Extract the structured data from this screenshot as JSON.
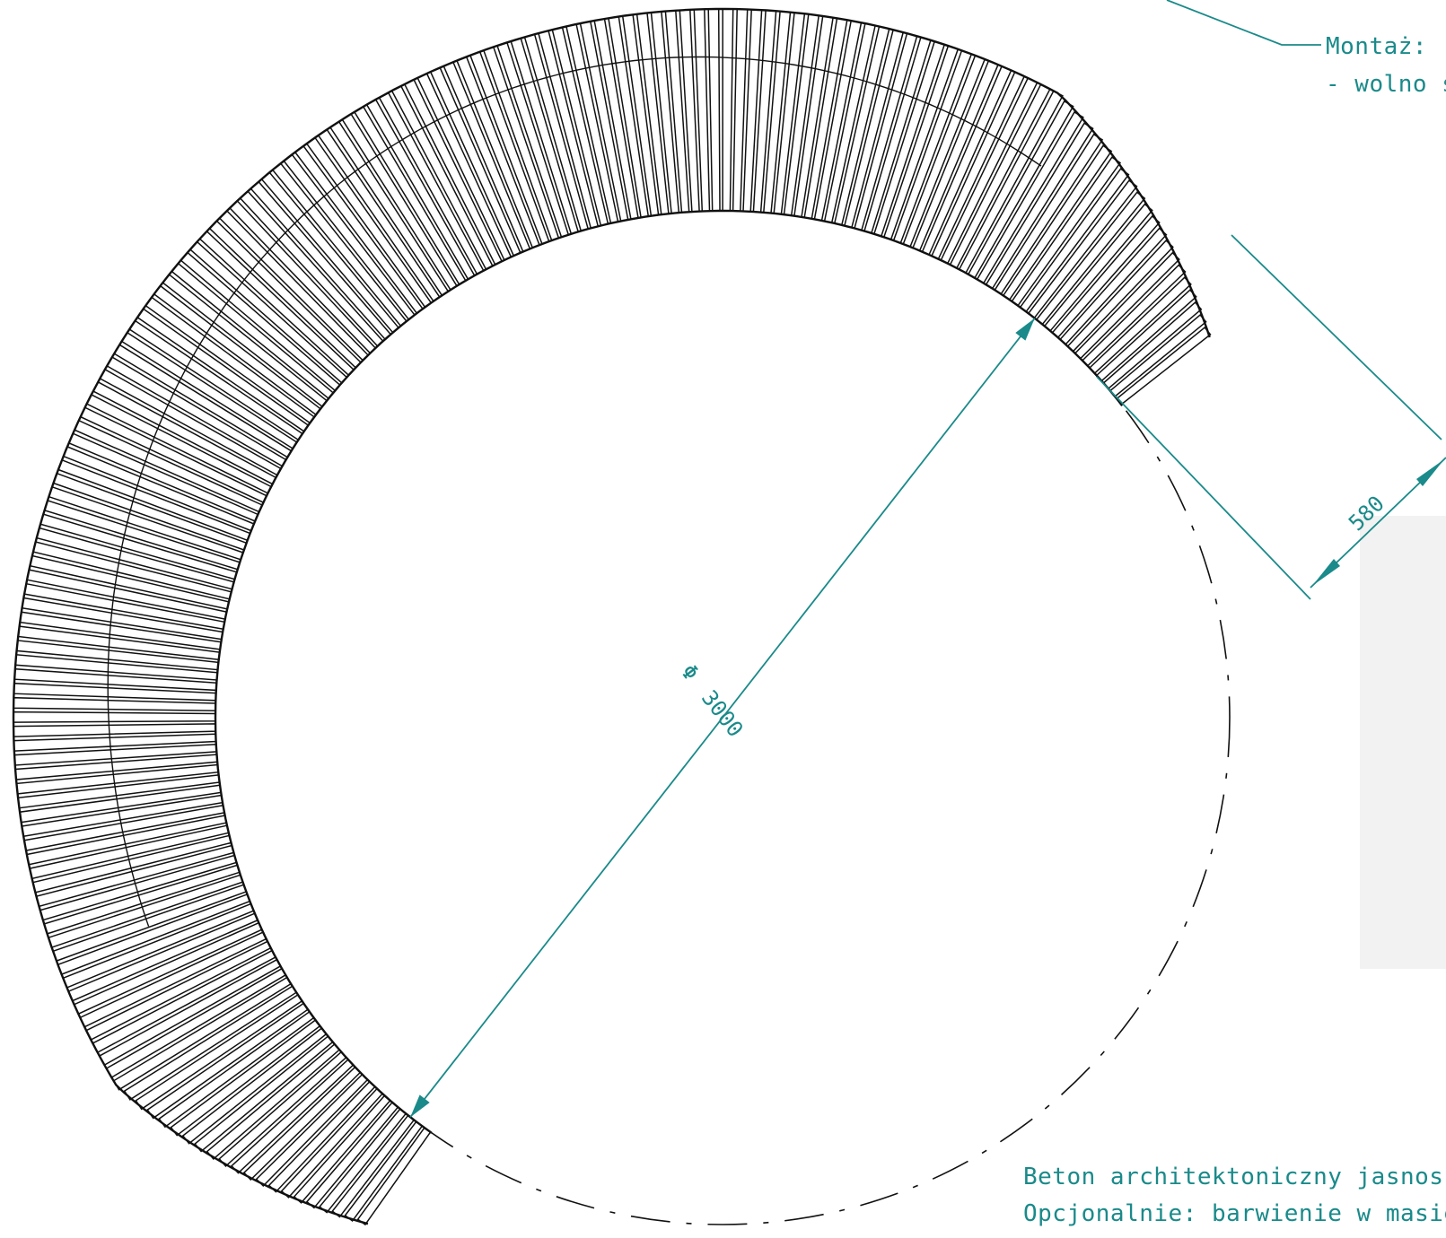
{
  "colors": {
    "outline": "#111111",
    "dimension": "#1a8a8a",
    "annotation": "#1a8a8a",
    "background": "#ffffff",
    "shadow": "#f2f2f2"
  },
  "dimensions": {
    "diameter": {
      "symbol": "Φ",
      "value": "3000"
    },
    "ring_width": {
      "value": "580"
    }
  },
  "annotations": {
    "mounting": {
      "line1": "Montaż:",
      "line2": "- wolno sto"
    },
    "material": {
      "line1": "Beton architektoniczny jasnoszary -",
      "line2": "Opcjonalnie: barwienie w masie"
    }
  },
  "drawing": {
    "slat_count": 170,
    "arc_start_deg": 120,
    "arc_end_deg": 322
  }
}
